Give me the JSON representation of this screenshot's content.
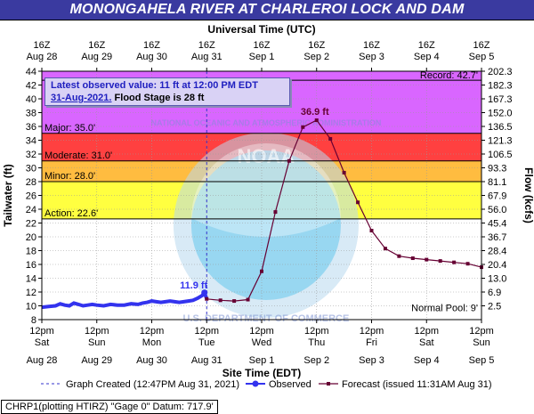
{
  "chart_data": {
    "type": "line",
    "title": "MONONGAHELA RIVER AT CHARLEROI LOCK AND DAM",
    "top_axis_label": "Universal Time (UTC)",
    "xlabel": "Site Time (EDT)",
    "ylabel": "Tailwater (ft)",
    "y2label": "Flow (kcfs)",
    "ylim": [
      8,
      44
    ],
    "yticks": [
      8,
      10,
      12,
      14,
      16,
      18,
      20,
      22,
      24,
      26,
      28,
      30,
      32,
      34,
      36,
      38,
      40,
      42,
      44
    ],
    "flow_ticks": [
      {
        "stage": 10.0,
        "label": "2.5"
      },
      {
        "stage": 12.0,
        "label": "6.9"
      },
      {
        "stage": 14.0,
        "label": "13.0"
      },
      {
        "stage": 16.0,
        "label": "20.4"
      },
      {
        "stage": 18.0,
        "label": "28.4"
      },
      {
        "stage": 20.0,
        "label": "36.7"
      },
      {
        "stage": 22.0,
        "label": "45.4"
      },
      {
        "stage": 24.0,
        "label": "56.0"
      },
      {
        "stage": 26.0,
        "label": "67.9"
      },
      {
        "stage": 28.0,
        "label": "81.1"
      },
      {
        "stage": 30.0,
        "label": "93.3"
      },
      {
        "stage": 32.0,
        "label": "106.5"
      },
      {
        "stage": 34.0,
        "label": "121.3"
      },
      {
        "stage": 36.0,
        "label": "136.5"
      },
      {
        "stage": 38.0,
        "label": "152.0"
      },
      {
        "stage": 40.0,
        "label": "167.3"
      },
      {
        "stage": 42.0,
        "label": "182.3"
      },
      {
        "stage": 44.0,
        "label": "202.3"
      }
    ],
    "x_hours_range": [
      0,
      192
    ],
    "bottom_ticks": [
      {
        "hour": 0,
        "time": "12pm",
        "day": "Sat",
        "date": "Aug 28"
      },
      {
        "hour": 24,
        "time": "12pm",
        "day": "Sun",
        "date": "Aug 29"
      },
      {
        "hour": 48,
        "time": "12pm",
        "day": "Mon",
        "date": "Aug 30"
      },
      {
        "hour": 72,
        "time": "12pm",
        "day": "Tue",
        "date": "Aug 31"
      },
      {
        "hour": 96,
        "time": "12pm",
        "day": "Wed",
        "date": "Sep 1"
      },
      {
        "hour": 120,
        "time": "12pm",
        "day": "Thu",
        "date": "Sep 2"
      },
      {
        "hour": 144,
        "time": "12pm",
        "day": "Fri",
        "date": "Sep 3"
      },
      {
        "hour": 168,
        "time": "12pm",
        "day": "Sat",
        "date": "Sep 4"
      },
      {
        "hour": 192,
        "time": "12pm",
        "day": "Sun",
        "date": "Sep 5"
      }
    ],
    "top_ticks": [
      {
        "hour": 0,
        "time": "16Z",
        "date": "Aug 28"
      },
      {
        "hour": 24,
        "time": "16Z",
        "date": "Aug 29"
      },
      {
        "hour": 48,
        "time": "16Z",
        "date": "Aug 30"
      },
      {
        "hour": 72,
        "time": "16Z",
        "date": "Aug 31"
      },
      {
        "hour": 96,
        "time": "16Z",
        "date": "Sep 1"
      },
      {
        "hour": 120,
        "time": "16Z",
        "date": "Sep 2"
      },
      {
        "hour": 144,
        "time": "16Z",
        "date": "Sep 3"
      },
      {
        "hour": 168,
        "time": "16Z",
        "date": "Sep 4"
      },
      {
        "hour": 192,
        "time": "16Z",
        "date": "Sep 5"
      }
    ],
    "flood_categories": [
      {
        "label": "Action: 22.6'",
        "from": 22.6,
        "to": 28.0,
        "color": "#ffff00"
      },
      {
        "label": "Minor: 28.0'",
        "from": 28.0,
        "to": 31.0,
        "color": "#ffa500"
      },
      {
        "label": "Moderate: 31.0'",
        "from": 31.0,
        "to": 35.0,
        "color": "#ff0000"
      },
      {
        "label": "Major: 35.0'",
        "from": 35.0,
        "to": 44.0,
        "color": "#cc33ff"
      }
    ],
    "record": {
      "label": "Record: 42.7'",
      "stage": 42.7
    },
    "normal_pool": {
      "label": "Normal Pool: 9'",
      "stage": 9
    },
    "peak_label": "36.9 ft",
    "observed_label": "11.9 ft",
    "graph_created_hour": 72,
    "series": [
      {
        "name": "Observed",
        "color": "#3333ee",
        "points": [
          [
            0,
            9.8
          ],
          [
            3,
            9.9
          ],
          [
            6,
            10.0
          ],
          [
            8,
            10.3
          ],
          [
            10,
            10.1
          ],
          [
            12,
            10.0
          ],
          [
            14,
            10.4
          ],
          [
            16,
            10.2
          ],
          [
            18,
            10.0
          ],
          [
            20,
            10.1
          ],
          [
            22,
            10.2
          ],
          [
            24,
            10.1
          ],
          [
            27,
            10.0
          ],
          [
            30,
            10.2
          ],
          [
            33,
            10.1
          ],
          [
            36,
            10.1
          ],
          [
            39,
            10.3
          ],
          [
            42,
            10.2
          ],
          [
            44,
            10.4
          ],
          [
            46,
            10.5
          ],
          [
            48,
            10.7
          ],
          [
            50,
            10.6
          ],
          [
            52,
            10.5
          ],
          [
            54,
            10.6
          ],
          [
            56,
            10.7
          ],
          [
            58,
            10.6
          ],
          [
            60,
            10.5
          ],
          [
            62,
            10.6
          ],
          [
            64,
            10.7
          ],
          [
            66,
            10.8
          ],
          [
            68,
            11.1
          ],
          [
            70,
            11.5
          ],
          [
            71,
            11.9
          ],
          [
            72,
            11.0
          ]
        ]
      },
      {
        "name": "Forecast",
        "color": "#660033",
        "points": [
          [
            72,
            11.0
          ],
          [
            78,
            10.8
          ],
          [
            84,
            10.7
          ],
          [
            90,
            10.9
          ],
          [
            96,
            15.0
          ],
          [
            102,
            23.6
          ],
          [
            108,
            31.0
          ],
          [
            114,
            35.9
          ],
          [
            120,
            36.9
          ],
          [
            126,
            34.2
          ],
          [
            132,
            29.3
          ],
          [
            138,
            25.0
          ],
          [
            144,
            20.9
          ],
          [
            150,
            18.3
          ],
          [
            156,
            17.2
          ],
          [
            162,
            16.9
          ],
          [
            168,
            16.7
          ],
          [
            174,
            16.5
          ],
          [
            180,
            16.3
          ],
          [
            186,
            16.1
          ],
          [
            192,
            15.6
          ]
        ]
      }
    ],
    "legend": [
      {
        "label": "Graph Created (12:47PM Aug 31, 2021)",
        "style": "dashed"
      },
      {
        "label": "Observed",
        "style": "observed"
      },
      {
        "label": "Forecast (issued 11:31AM Aug 31)",
        "style": "forecast"
      }
    ],
    "latest_observed": {
      "line1": "Latest observed value: 11 ft at 12:00 PM EDT",
      "line2_date": "31-Aug-2021.",
      "line2_rest": "Flood Stage is 28 ft"
    },
    "footer": "CHRP1(plotting HTIRZ) \"Gage 0\" Datum: 717.9'",
    "watermark_text_top": "NATIONAL OCEANIC AND ATMOSPHERIC ADMINISTRATION",
    "watermark_text_bottom": "U.S. DEPARTMENT OF COMMERCE",
    "watermark_center": "NOAA"
  }
}
